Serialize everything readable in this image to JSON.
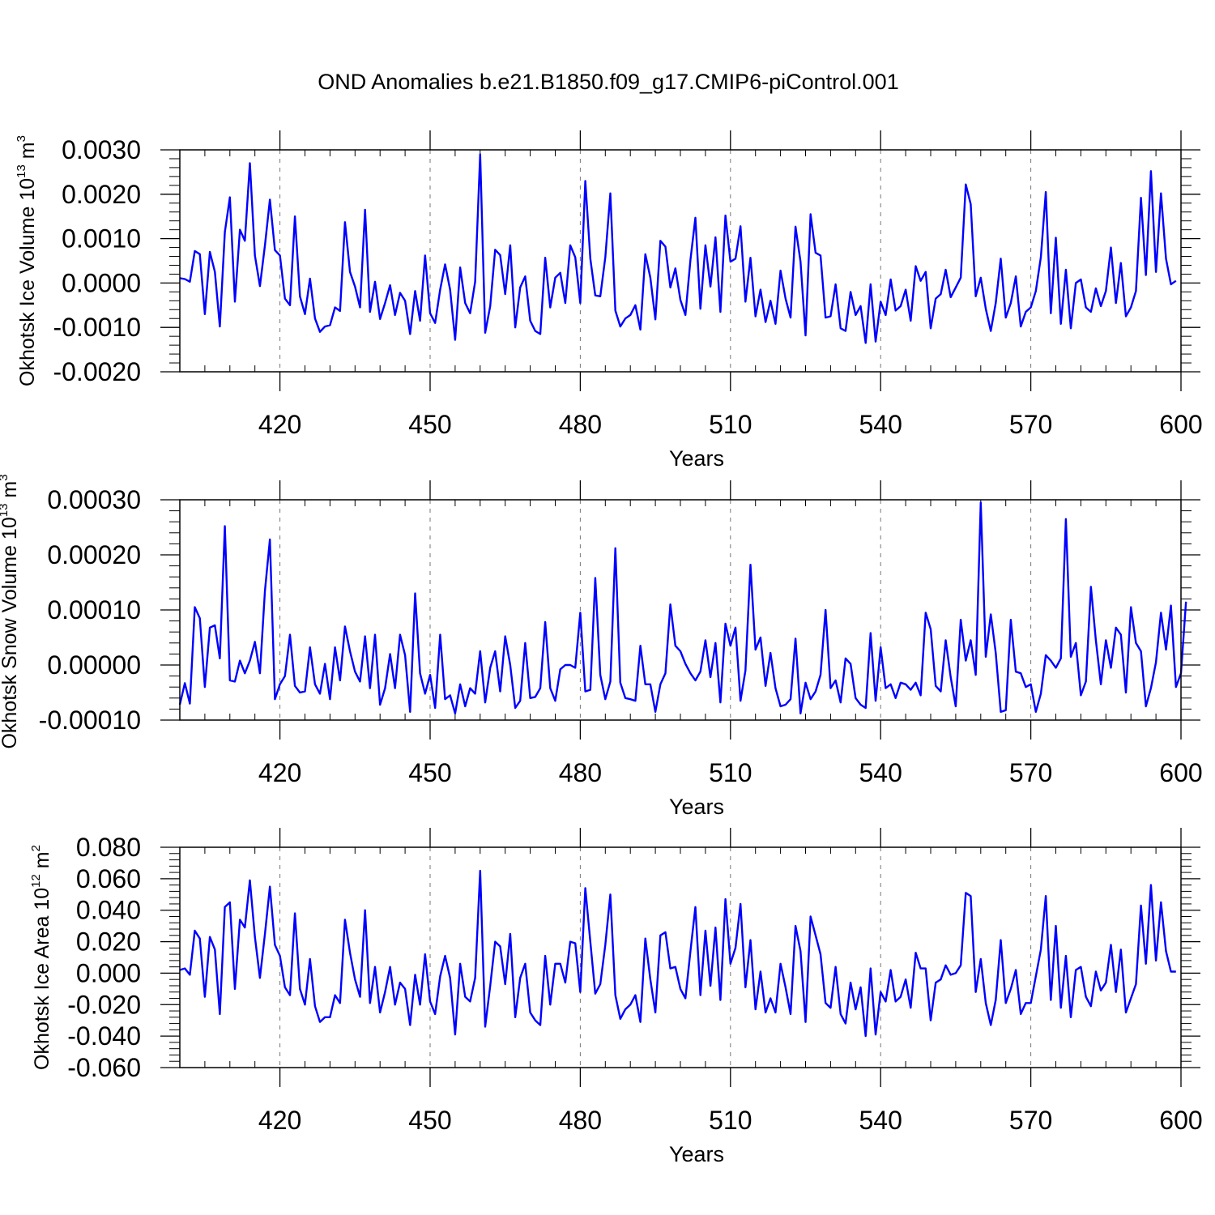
{
  "figure_title": "OND Anomalies b.e21.B1850.f09_g17.CMIP6-piControl.001",
  "line_color": "#0000ff",
  "chart_data": [
    {
      "type": "line",
      "title": "OND Anomalies b.e21.B1850.f09_g17.CMIP6-piControl.001",
      "xlabel": "Years",
      "ylabel_parts": [
        "Okhotsk Ice Volume 10",
        "13",
        " m",
        "3"
      ],
      "xlim": [
        400,
        600
      ],
      "ylim": [
        -0.002,
        0.003
      ],
      "xticks": [
        420,
        450,
        480,
        510,
        540,
        570,
        600
      ],
      "xtick_labels": [
        "420",
        "450",
        "480",
        "510",
        "540",
        "570",
        "600"
      ],
      "yticks": [
        -0.002,
        -0.001,
        0.0,
        0.001,
        0.002,
        0.003
      ],
      "ytick_labels": [
        "-0.0020",
        "-0.0010",
        "0.0000",
        "0.0010",
        "0.0020",
        "0.0030"
      ],
      "x_start": 400,
      "series": [
        {
          "name": "Okhotsk Ice Volume",
          "values": [
            0.00011,
            9e-05,
            3e-05,
            0.00072,
            0.00065,
            -0.0007,
            0.0007,
            0.00025,
            -0.00098,
            0.00115,
            0.00193,
            -0.00042,
            0.0012,
            0.00095,
            0.0027,
            0.00062,
            -7e-05,
            0.00085,
            0.00188,
            0.00074,
            0.00062,
            -0.00035,
            -0.0005,
            0.0015,
            -0.0003,
            -0.0007,
            0.0001,
            -0.0008,
            -0.0011,
            -0.00098,
            -0.00095,
            -0.00055,
            -0.00063,
            0.00137,
            0.00025,
            -8e-05,
            -0.00055,
            0.00165,
            -0.00065,
            3e-05,
            -0.00081,
            -0.00045,
            -5e-05,
            -0.00072,
            -0.00022,
            -0.0004,
            -0.00115,
            -0.00018,
            -0.00085,
            0.00062,
            -0.00068,
            -0.0009,
            -0.00015,
            0.00042,
            -0.00015,
            -0.00128,
            0.00035,
            -0.00045,
            -0.00068,
            3e-05,
            0.0029,
            -0.00112,
            -0.00052,
            0.00075,
            0.00063,
            -0.00025,
            0.00085,
            -0.001,
            -0.0001,
            0.00015,
            -0.00085,
            -0.00108,
            -0.00115,
            0.00057,
            -0.00055,
            0.00012,
            0.00023,
            -0.00045,
            0.00085,
            0.00058,
            -0.00045,
            0.0023,
            0.00055,
            -0.00028,
            -0.0003,
            0.00058,
            0.00202,
            -0.00062,
            -0.00098,
            -0.0008,
            -0.00072,
            -0.0005,
            -0.00105,
            0.00065,
            0.00012,
            -0.00082,
            0.00095,
            0.00082,
            -0.0001,
            0.00033,
            -0.00038,
            -0.00072,
            0.00052,
            0.00147,
            -0.00058,
            0.00085,
            -8e-05,
            0.00103,
            -0.00065,
            0.00152,
            0.00048,
            0.00055,
            0.00128,
            -0.00042,
            0.00057,
            -0.00075,
            -0.00015,
            -0.00088,
            -0.0004,
            -0.00092,
            0.00028,
            -0.00035,
            -0.00078,
            0.00127,
            0.00048,
            -0.00118,
            0.00155,
            0.00068,
            0.00062,
            -0.00078,
            -0.00075,
            -3e-05,
            -0.00102,
            -0.00108,
            -0.0002,
            -0.00072,
            -0.00052,
            -0.00135,
            -3e-05,
            -0.00132,
            -0.00042,
            -0.00072,
            8e-05,
            -0.00062,
            -0.00052,
            -0.00015,
            -0.00085,
            0.00038,
            5e-05,
            0.00025,
            -0.00102,
            -0.00035,
            -0.00025,
            0.0003,
            -0.00032,
            -0.0001,
            0.00012,
            0.00222,
            0.00178,
            -0.0003,
            0.00012,
            -0.00058,
            -0.00108,
            -0.00045,
            0.00055,
            -0.00078,
            -0.00045,
            0.00015,
            -0.00098,
            -0.00065,
            -0.00055,
            -0.00018,
            0.00058,
            0.00205,
            -0.00068,
            0.00102,
            -0.00092,
            0.0003,
            -0.00102,
            0.0,
            8e-05,
            -0.00055,
            -0.00065,
            -0.00012,
            -0.00052,
            -0.00018,
            0.0008,
            -0.00045,
            0.00045,
            -0.00075,
            -0.00055,
            -0.00018,
            0.00192,
            0.00018,
            0.00252,
            0.00025,
            0.00202,
            0.00055,
            -3e-05,
            5e-05
          ]
        }
      ]
    },
    {
      "type": "line",
      "xlabel": "Years",
      "ylabel_parts": [
        "Okhotsk Snow Volume 10",
        "13",
        " m",
        "3"
      ],
      "xlim": [
        400,
        600
      ],
      "ylim": [
        -0.0001,
        0.0003
      ],
      "xticks": [
        420,
        450,
        480,
        510,
        540,
        570,
        600
      ],
      "xtick_labels": [
        "420",
        "450",
        "480",
        "510",
        "540",
        "570",
        "600"
      ],
      "yticks": [
        -0.0001,
        0.0,
        0.0001,
        0.0002,
        0.0003
      ],
      "ytick_labels": [
        "-0.00010",
        "0.00000",
        "0.00010",
        "0.00020",
        "0.00030"
      ],
      "x_start": 400,
      "series": [
        {
          "name": "Okhotsk Snow Volume",
          "values": [
            -7.2e-05,
            -3.3e-05,
            -7e-05,
            0.000105,
            8.5e-05,
            -4e-05,
            6.8e-05,
            7.2e-05,
            1.2e-05,
            0.000252,
            -2.8e-05,
            -3e-05,
            8e-06,
            -1.5e-05,
            8e-06,
            4.2e-05,
            -1.5e-05,
            0.000135,
            0.000228,
            -6.2e-05,
            -3.5e-05,
            -2e-05,
            5.5e-05,
            -3.8e-05,
            -5e-05,
            -4.8e-05,
            3.2e-05,
            -3.5e-05,
            -5.2e-05,
            2e-06,
            -6.2e-05,
            3.2e-05,
            -2.8e-05,
            7e-05,
            2.5e-05,
            -1.2e-05,
            -3e-05,
            5.2e-05,
            -4.2e-05,
            5.5e-05,
            -7.2e-05,
            -4.2e-05,
            2e-05,
            -4.2e-05,
            5.5e-05,
            1.8e-05,
            -8.5e-05,
            0.00013,
            -1.5e-05,
            -5.2e-05,
            -1.8e-05,
            -7.8e-05,
            5.5e-05,
            -6.2e-05,
            -5.5e-05,
            -8.8e-05,
            -3.5e-05,
            -7.5e-05,
            -4.2e-05,
            -5.2e-05,
            2.5e-05,
            -6.8e-05,
            -5e-06,
            2.5e-05,
            -4.8e-05,
            5.2e-05,
            0.0,
            -7.8e-05,
            -6.5e-05,
            4e-05,
            -6e-05,
            -5.8e-05,
            -4.2e-05,
            7.8e-05,
            -4.2e-05,
            -6.5e-05,
            -8e-06,
            0.0,
            0.0,
            -5e-06,
            9.5e-05,
            -4.8e-05,
            -4.5e-05,
            0.000158,
            -1.8e-05,
            -6.2e-05,
            -3e-05,
            0.000212,
            -3.2e-05,
            -6e-05,
            -6.2e-05,
            -6.5e-05,
            3.5e-05,
            -3.5e-05,
            -3.5e-05,
            -8.5e-05,
            -3.5e-05,
            -1.5e-05,
            0.00011,
            3.5e-05,
            2.5e-05,
            2e-06,
            -1.5e-05,
            -2.8e-05,
            -1.2e-05,
            4.5e-05,
            -2.2e-05,
            4e-05,
            -6.8e-05,
            7.5e-05,
            3.5e-05,
            6.8e-05,
            -6.5e-05,
            -1e-05,
            0.000182,
            2.8e-05,
            5e-05,
            -3.8e-05,
            2.2e-05,
            -4.2e-05,
            -7.5e-05,
            -7.2e-05,
            -6.2e-05,
            4.8e-05,
            -8.8e-05,
            -3.2e-05,
            -6.2e-05,
            -4.8e-05,
            -1.8e-05,
            0.0001,
            -4.2e-05,
            -2.8e-05,
            -6.8e-05,
            1.2e-05,
            2e-06,
            -6e-05,
            -7.2e-05,
            -7.8e-05,
            5.8e-05,
            -6.5e-05,
            3.2e-05,
            -4.2e-05,
            -3.5e-05,
            -6e-05,
            -3.2e-05,
            -3.5e-05,
            -4.5e-05,
            -3.2e-05,
            -5.5e-05,
            9.5e-05,
            6.5e-05,
            -3.8e-05,
            -4.8e-05,
            4.5e-05,
            -2.2e-05,
            -7.5e-05,
            8.2e-05,
            8e-06,
            4.5e-05,
            -1.8e-05,
            0.000295,
            1.5e-05,
            9.2e-05,
            2.2e-05,
            -8.5e-05,
            -8.2e-05,
            8.2e-05,
            -1.2e-05,
            -1.5e-05,
            -4e-05,
            -3.5e-05,
            -8.5e-05,
            -5.2e-05,
            1.8e-05,
            8e-06,
            -5e-06,
            1.2e-05,
            0.000265,
            1.5e-05,
            4e-05,
            -5.5e-05,
            -3e-05,
            0.000142,
            4.5e-05,
            -3.5e-05,
            4.5e-05,
            -5e-06,
            6.8e-05,
            5.5e-05,
            -5e-05,
            0.000105,
            4e-05,
            2.5e-05,
            -7.5e-05,
            -4.2e-05,
            5e-06,
            9.5e-05,
            2.8e-05,
            0.000108,
            -4e-05,
            -1.5e-05,
            0.000115
          ]
        }
      ]
    },
    {
      "type": "line",
      "xlabel": "Years",
      "ylabel_parts": [
        "Okhotsk Ice Area 10",
        "12",
        " m",
        "2"
      ],
      "xlim": [
        400,
        600
      ],
      "ylim": [
        -0.06,
        0.08
      ],
      "xticks": [
        420,
        450,
        480,
        510,
        540,
        570,
        600
      ],
      "xtick_labels": [
        "420",
        "450",
        "480",
        "510",
        "540",
        "570",
        "600"
      ],
      "yticks": [
        -0.06,
        -0.04,
        -0.02,
        0.0,
        0.02,
        0.04,
        0.06,
        0.08
      ],
      "ytick_labels": [
        "-0.060",
        "-0.040",
        "-0.020",
        "0.000",
        "0.020",
        "0.040",
        "0.060",
        "0.080"
      ],
      "x_start": 400,
      "series": [
        {
          "name": "Okhotsk Ice Area",
          "values": [
            0.002,
            0.003,
            -0.001,
            0.027,
            0.022,
            -0.015,
            0.023,
            0.015,
            -0.026,
            0.042,
            0.045,
            -0.01,
            0.034,
            0.029,
            0.059,
            0.023,
            -0.003,
            0.025,
            0.055,
            0.018,
            0.011,
            -0.009,
            -0.014,
            0.038,
            -0.01,
            -0.02,
            0.009,
            -0.021,
            -0.031,
            -0.028,
            -0.028,
            -0.014,
            -0.019,
            0.034,
            0.013,
            -0.004,
            -0.015,
            0.04,
            -0.019,
            0.004,
            -0.025,
            -0.012,
            0.004,
            -0.02,
            -0.006,
            -0.01,
            -0.033,
            -0.001,
            -0.02,
            0.012,
            -0.018,
            -0.026,
            -0.002,
            0.011,
            -0.003,
            -0.039,
            0.006,
            -0.015,
            -0.018,
            -0.003,
            0.065,
            -0.034,
            -0.008,
            0.02,
            0.017,
            -0.007,
            0.025,
            -0.028,
            -0.003,
            0.006,
            -0.025,
            -0.03,
            -0.033,
            0.011,
            -0.02,
            0.006,
            0.006,
            -0.006,
            0.02,
            0.019,
            -0.012,
            0.054,
            0.02,
            -0.013,
            -0.007,
            0.018,
            0.05,
            -0.014,
            -0.029,
            -0.023,
            -0.02,
            -0.014,
            -0.031,
            0.022,
            -0.004,
            -0.025,
            0.024,
            0.026,
            0.003,
            0.004,
            -0.01,
            -0.016,
            0.014,
            0.042,
            -0.014,
            0.027,
            -0.008,
            0.029,
            -0.017,
            0.047,
            0.006,
            0.016,
            0.044,
            -0.009,
            0.021,
            -0.023,
            0.001,
            -0.025,
            -0.016,
            -0.025,
            0.006,
            -0.009,
            -0.026,
            0.03,
            0.014,
            -0.031,
            0.036,
            0.024,
            0.012,
            -0.019,
            -0.022,
            0.004,
            -0.026,
            -0.032,
            -0.006,
            -0.023,
            -0.009,
            -0.04,
            0.003,
            -0.039,
            -0.012,
            -0.018,
            0.002,
            -0.018,
            -0.015,
            -0.004,
            -0.022,
            0.013,
            0.003,
            0.003,
            -0.03,
            -0.006,
            -0.004,
            0.005,
            -0.001,
            0.0,
            0.005,
            0.051,
            0.049,
            -0.012,
            0.009,
            -0.019,
            -0.033,
            -0.017,
            0.021,
            -0.019,
            -0.01,
            0.002,
            -0.026,
            -0.019,
            -0.019,
            -0.002,
            0.015,
            0.049,
            -0.017,
            0.03,
            -0.022,
            0.011,
            -0.028,
            0.002,
            0.004,
            -0.015,
            -0.021,
            0.001,
            -0.011,
            -0.006,
            0.018,
            -0.012,
            0.015,
            -0.025,
            -0.016,
            -0.007,
            0.043,
            0.006,
            0.056,
            0.008,
            0.045,
            0.014,
            0.001,
            0.001
          ]
        }
      ]
    }
  ]
}
